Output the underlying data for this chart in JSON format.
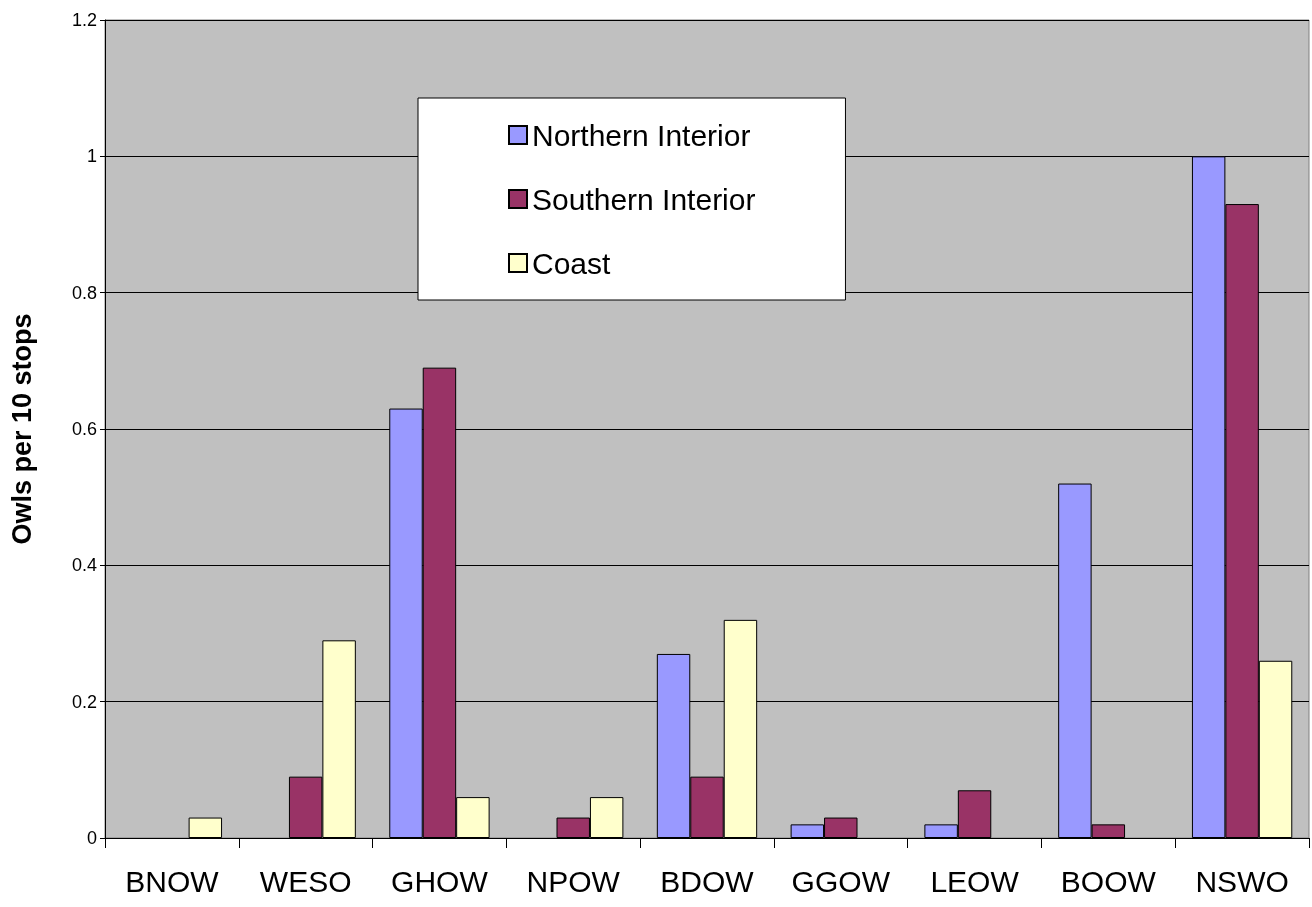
{
  "chart_data": {
    "type": "bar",
    "ylabel": "Owls per 10 stops",
    "categories": [
      "BNOW",
      "WESO",
      "GHOW",
      "NPOW",
      "BDOW",
      "GGOW",
      "LEOW",
      "BOOW",
      "NSWO"
    ],
    "series": [
      {
        "name": "Northern Interior",
        "color": "#9999ff",
        "values": [
          null,
          null,
          0.63,
          null,
          0.27,
          0.02,
          0.02,
          0.52,
          1.0
        ]
      },
      {
        "name": "Southern Interior",
        "color": "#993366",
        "values": [
          null,
          0.09,
          0.69,
          0.03,
          0.09,
          0.03,
          0.07,
          0.02,
          0.93
        ]
      },
      {
        "name": "Coast",
        "color": "#ffffcc",
        "values": [
          0.03,
          0.29,
          0.06,
          0.06,
          0.32,
          null,
          null,
          null,
          0.26
        ]
      }
    ],
    "ylim": [
      0,
      1.2
    ],
    "yticks": [
      0,
      0.2,
      0.4,
      0.6,
      0.8,
      1,
      1.2
    ],
    "grid": "y",
    "legend": "top"
  }
}
